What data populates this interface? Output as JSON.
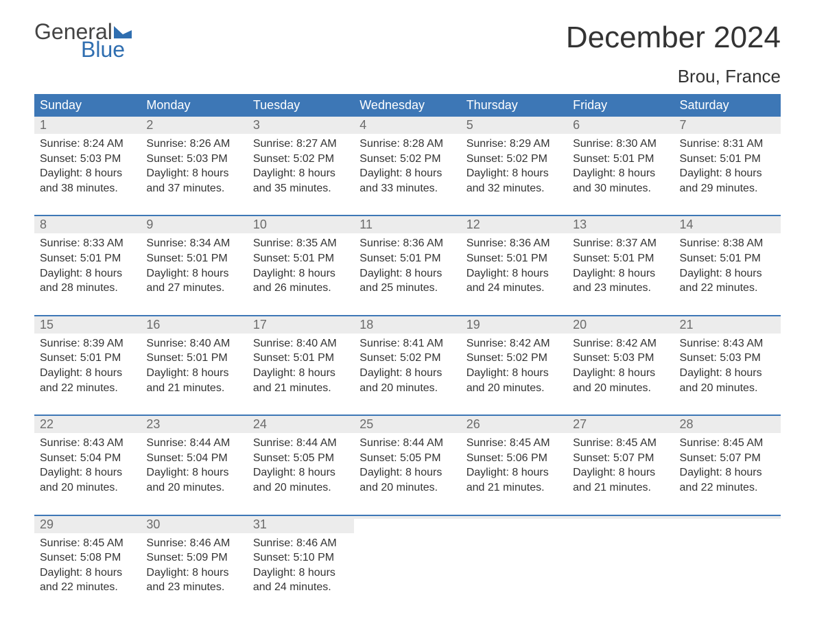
{
  "brand": {
    "word1": "General",
    "word2": "Blue",
    "flag_color": "#2f6eb0",
    "text_color": "#2f6eb0"
  },
  "title": "December 2024",
  "location": "Brou, France",
  "colors": {
    "header_bg": "#3d77b6",
    "header_text": "#ffffff",
    "daynum_bg": "#ececec",
    "daynum_text": "#6b6b6b",
    "body_text": "#333333",
    "week_border": "#3d77b6",
    "page_bg": "#ffffff"
  },
  "day_names": [
    "Sunday",
    "Monday",
    "Tuesday",
    "Wednesday",
    "Thursday",
    "Friday",
    "Saturday"
  ],
  "weeks": [
    [
      {
        "n": "1",
        "sr": "Sunrise: 8:24 AM",
        "ss": "Sunset: 5:03 PM",
        "d1": "Daylight: 8 hours",
        "d2": "and 38 minutes."
      },
      {
        "n": "2",
        "sr": "Sunrise: 8:26 AM",
        "ss": "Sunset: 5:03 PM",
        "d1": "Daylight: 8 hours",
        "d2": "and 37 minutes."
      },
      {
        "n": "3",
        "sr": "Sunrise: 8:27 AM",
        "ss": "Sunset: 5:02 PM",
        "d1": "Daylight: 8 hours",
        "d2": "and 35 minutes."
      },
      {
        "n": "4",
        "sr": "Sunrise: 8:28 AM",
        "ss": "Sunset: 5:02 PM",
        "d1": "Daylight: 8 hours",
        "d2": "and 33 minutes."
      },
      {
        "n": "5",
        "sr": "Sunrise: 8:29 AM",
        "ss": "Sunset: 5:02 PM",
        "d1": "Daylight: 8 hours",
        "d2": "and 32 minutes."
      },
      {
        "n": "6",
        "sr": "Sunrise: 8:30 AM",
        "ss": "Sunset: 5:01 PM",
        "d1": "Daylight: 8 hours",
        "d2": "and 30 minutes."
      },
      {
        "n": "7",
        "sr": "Sunrise: 8:31 AM",
        "ss": "Sunset: 5:01 PM",
        "d1": "Daylight: 8 hours",
        "d2": "and 29 minutes."
      }
    ],
    [
      {
        "n": "8",
        "sr": "Sunrise: 8:33 AM",
        "ss": "Sunset: 5:01 PM",
        "d1": "Daylight: 8 hours",
        "d2": "and 28 minutes."
      },
      {
        "n": "9",
        "sr": "Sunrise: 8:34 AM",
        "ss": "Sunset: 5:01 PM",
        "d1": "Daylight: 8 hours",
        "d2": "and 27 minutes."
      },
      {
        "n": "10",
        "sr": "Sunrise: 8:35 AM",
        "ss": "Sunset: 5:01 PM",
        "d1": "Daylight: 8 hours",
        "d2": "and 26 minutes."
      },
      {
        "n": "11",
        "sr": "Sunrise: 8:36 AM",
        "ss": "Sunset: 5:01 PM",
        "d1": "Daylight: 8 hours",
        "d2": "and 25 minutes."
      },
      {
        "n": "12",
        "sr": "Sunrise: 8:36 AM",
        "ss": "Sunset: 5:01 PM",
        "d1": "Daylight: 8 hours",
        "d2": "and 24 minutes."
      },
      {
        "n": "13",
        "sr": "Sunrise: 8:37 AM",
        "ss": "Sunset: 5:01 PM",
        "d1": "Daylight: 8 hours",
        "d2": "and 23 minutes."
      },
      {
        "n": "14",
        "sr": "Sunrise: 8:38 AM",
        "ss": "Sunset: 5:01 PM",
        "d1": "Daylight: 8 hours",
        "d2": "and 22 minutes."
      }
    ],
    [
      {
        "n": "15",
        "sr": "Sunrise: 8:39 AM",
        "ss": "Sunset: 5:01 PM",
        "d1": "Daylight: 8 hours",
        "d2": "and 22 minutes."
      },
      {
        "n": "16",
        "sr": "Sunrise: 8:40 AM",
        "ss": "Sunset: 5:01 PM",
        "d1": "Daylight: 8 hours",
        "d2": "and 21 minutes."
      },
      {
        "n": "17",
        "sr": "Sunrise: 8:40 AM",
        "ss": "Sunset: 5:01 PM",
        "d1": "Daylight: 8 hours",
        "d2": "and 21 minutes."
      },
      {
        "n": "18",
        "sr": "Sunrise: 8:41 AM",
        "ss": "Sunset: 5:02 PM",
        "d1": "Daylight: 8 hours",
        "d2": "and 20 minutes."
      },
      {
        "n": "19",
        "sr": "Sunrise: 8:42 AM",
        "ss": "Sunset: 5:02 PM",
        "d1": "Daylight: 8 hours",
        "d2": "and 20 minutes."
      },
      {
        "n": "20",
        "sr": "Sunrise: 8:42 AM",
        "ss": "Sunset: 5:03 PM",
        "d1": "Daylight: 8 hours",
        "d2": "and 20 minutes."
      },
      {
        "n": "21",
        "sr": "Sunrise: 8:43 AM",
        "ss": "Sunset: 5:03 PM",
        "d1": "Daylight: 8 hours",
        "d2": "and 20 minutes."
      }
    ],
    [
      {
        "n": "22",
        "sr": "Sunrise: 8:43 AM",
        "ss": "Sunset: 5:04 PM",
        "d1": "Daylight: 8 hours",
        "d2": "and 20 minutes."
      },
      {
        "n": "23",
        "sr": "Sunrise: 8:44 AM",
        "ss": "Sunset: 5:04 PM",
        "d1": "Daylight: 8 hours",
        "d2": "and 20 minutes."
      },
      {
        "n": "24",
        "sr": "Sunrise: 8:44 AM",
        "ss": "Sunset: 5:05 PM",
        "d1": "Daylight: 8 hours",
        "d2": "and 20 minutes."
      },
      {
        "n": "25",
        "sr": "Sunrise: 8:44 AM",
        "ss": "Sunset: 5:05 PM",
        "d1": "Daylight: 8 hours",
        "d2": "and 20 minutes."
      },
      {
        "n": "26",
        "sr": "Sunrise: 8:45 AM",
        "ss": "Sunset: 5:06 PM",
        "d1": "Daylight: 8 hours",
        "d2": "and 21 minutes."
      },
      {
        "n": "27",
        "sr": "Sunrise: 8:45 AM",
        "ss": "Sunset: 5:07 PM",
        "d1": "Daylight: 8 hours",
        "d2": "and 21 minutes."
      },
      {
        "n": "28",
        "sr": "Sunrise: 8:45 AM",
        "ss": "Sunset: 5:07 PM",
        "d1": "Daylight: 8 hours",
        "d2": "and 22 minutes."
      }
    ],
    [
      {
        "n": "29",
        "sr": "Sunrise: 8:45 AM",
        "ss": "Sunset: 5:08 PM",
        "d1": "Daylight: 8 hours",
        "d2": "and 22 minutes."
      },
      {
        "n": "30",
        "sr": "Sunrise: 8:46 AM",
        "ss": "Sunset: 5:09 PM",
        "d1": "Daylight: 8 hours",
        "d2": "and 23 minutes."
      },
      {
        "n": "31",
        "sr": "Sunrise: 8:46 AM",
        "ss": "Sunset: 5:10 PM",
        "d1": "Daylight: 8 hours",
        "d2": "and 24 minutes."
      },
      {
        "empty": true
      },
      {
        "empty": true
      },
      {
        "empty": true
      },
      {
        "empty": true
      }
    ]
  ]
}
